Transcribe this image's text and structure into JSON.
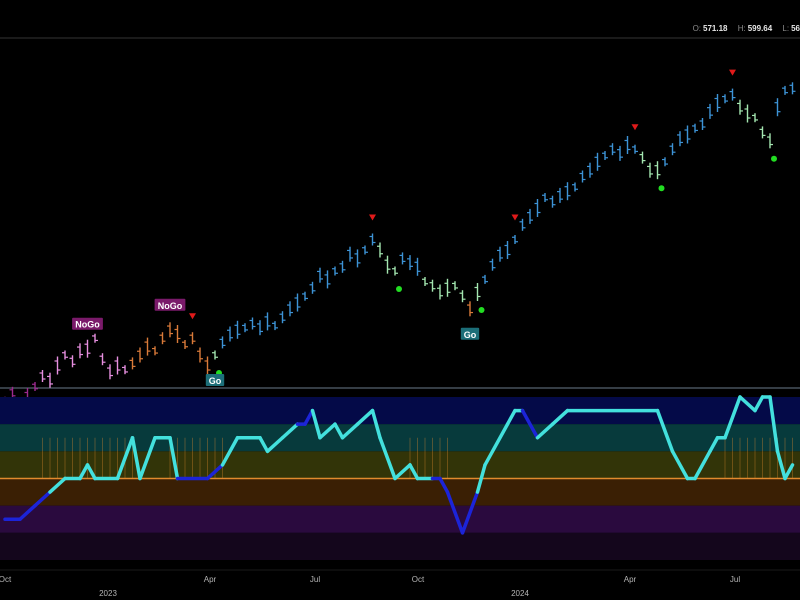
{
  "header": {
    "open_label": "O:",
    "open_value": "571.18",
    "high_label": "H:",
    "high_value": "599.64",
    "low_label": "L:",
    "low_value": "56"
  },
  "colors": {
    "background": "#000000",
    "go_strong": "#3d93d6",
    "go_weak": "#a4e6b0",
    "nogo_strong": "#9c2a8e",
    "nogo_weak": "#e78fe0",
    "neutral": "#d97a39",
    "oscillator_go": "#43e0dd",
    "oscillator_nogo": "#1c24d8",
    "zero_line": "#e08a2e",
    "marker_red": "#e01a1a",
    "marker_green": "#22dd22",
    "go_badge": "#1c6e78",
    "nogo_badge": "#7a1a6a"
  },
  "chart_data": [
    {
      "type": "ohlc",
      "x_axis": {
        "month_ticks": [
          "Oct",
          "Apr",
          "Jul",
          "Oct",
          "Apr",
          "Jul"
        ],
        "year_ticks": [
          "2023",
          "2024"
        ]
      },
      "series": [
        {
          "values": [
            [
              0,
              448,
              "nogo_strong"
            ],
            [
              1,
              452,
              "nogo_strong"
            ],
            [
              2,
              446,
              "nogo_strong"
            ],
            [
              3,
              450,
              "nogo_strong"
            ],
            [
              4,
              455,
              "nogo_strong"
            ],
            [
              5,
              460,
              "nogo_weak"
            ],
            [
              6,
              458,
              "nogo_weak"
            ],
            [
              7,
              465,
              "nogo_weak"
            ],
            [
              8,
              470,
              "nogo_weak"
            ],
            [
              9,
              467,
              "nogo_weak"
            ],
            [
              10,
              472,
              "nogo_weak"
            ],
            [
              11,
              473,
              "nogo_weak"
            ],
            [
              12,
              478,
              "nogo_weak"
            ],
            [
              13,
              468,
              "nogo_weak"
            ],
            [
              14,
              462,
              "nogo_weak"
            ],
            [
              15,
              465,
              "nogo_weak"
            ],
            [
              16,
              463,
              "nogo_weak"
            ],
            [
              17,
              466,
              "neutral"
            ],
            [
              18,
              470,
              "neutral"
            ],
            [
              19,
              474,
              "neutral"
            ],
            [
              20,
              472,
              "neutral"
            ],
            [
              21,
              478,
              "neutral"
            ],
            [
              22,
              482,
              "neutral"
            ],
            [
              23,
              480,
              "neutral"
            ],
            [
              24,
              475,
              "neutral"
            ],
            [
              25,
              478,
              "neutral"
            ],
            [
              26,
              470,
              "neutral"
            ],
            [
              27,
              465,
              "neutral"
            ],
            [
              28,
              470,
              "go_weak"
            ],
            [
              29,
              476,
              "go_strong"
            ],
            [
              30,
              480,
              "go_strong"
            ],
            [
              31,
              482,
              "go_strong"
            ],
            [
              32,
              483,
              "go_strong"
            ],
            [
              33,
              485,
              "go_strong"
            ],
            [
              34,
              483,
              "go_strong"
            ],
            [
              35,
              486,
              "go_strong"
            ],
            [
              36,
              484,
              "go_strong"
            ],
            [
              37,
              488,
              "go_strong"
            ],
            [
              38,
              492,
              "go_strong"
            ],
            [
              39,
              495,
              "go_strong"
            ],
            [
              40,
              498,
              "go_strong"
            ],
            [
              41,
              502,
              "go_strong"
            ],
            [
              42,
              508,
              "go_strong"
            ],
            [
              43,
              506,
              "go_strong"
            ],
            [
              44,
              510,
              "go_strong"
            ],
            [
              45,
              512,
              "go_strong"
            ],
            [
              46,
              518,
              "go_strong"
            ],
            [
              47,
              516,
              "go_strong"
            ],
            [
              48,
              520,
              "go_strong"
            ],
            [
              49,
              525,
              "go_strong"
            ],
            [
              50,
              520,
              "go_weak"
            ],
            [
              51,
              513,
              "go_weak"
            ],
            [
              52,
              510,
              "go_weak"
            ],
            [
              53,
              516,
              "go_strong"
            ],
            [
              54,
              514,
              "go_strong"
            ],
            [
              55,
              512,
              "go_strong"
            ],
            [
              56,
              505,
              "go_weak"
            ],
            [
              57,
              503,
              "go_weak"
            ],
            [
              58,
              500,
              "go_weak"
            ],
            [
              59,
              502,
              "go_weak"
            ],
            [
              60,
              503,
              "go_weak"
            ],
            [
              61,
              498,
              "go_weak"
            ],
            [
              62,
              492,
              "neutral"
            ],
            [
              63,
              500,
              "go_weak"
            ],
            [
              64,
              506,
              "go_strong"
            ],
            [
              65,
              513,
              "go_strong"
            ],
            [
              66,
              518,
              "go_strong"
            ],
            [
              67,
              520,
              "go_strong"
            ],
            [
              68,
              525,
              "go_strong"
            ],
            [
              69,
              532,
              "go_strong"
            ],
            [
              70,
              536,
              "go_strong"
            ],
            [
              71,
              540,
              "go_strong"
            ],
            [
              72,
              545,
              "go_strong"
            ],
            [
              73,
              543,
              "go_strong"
            ],
            [
              74,
              546,
              "go_strong"
            ],
            [
              75,
              548,
              "go_strong"
            ],
            [
              76,
              550,
              "go_strong"
            ],
            [
              77,
              555,
              "go_strong"
            ],
            [
              78,
              558,
              "go_strong"
            ],
            [
              79,
              562,
              "go_strong"
            ],
            [
              80,
              565,
              "go_strong"
            ],
            [
              81,
              568,
              "go_strong"
            ],
            [
              82,
              566,
              "go_strong"
            ],
            [
              83,
              570,
              "go_strong"
            ],
            [
              84,
              568,
              "go_strong"
            ],
            [
              85,
              564,
              "go_weak"
            ],
            [
              86,
              558,
              "go_weak"
            ],
            [
              87,
              558,
              "go_weak"
            ],
            [
              88,
              562,
              "go_strong"
            ],
            [
              89,
              568,
              "go_strong"
            ],
            [
              90,
              573,
              "go_strong"
            ],
            [
              91,
              575,
              "go_strong"
            ],
            [
              92,
              578,
              "go_strong"
            ],
            [
              93,
              580,
              "go_strong"
            ],
            [
              94,
              586,
              "go_strong"
            ],
            [
              95,
              590,
              "go_strong"
            ],
            [
              96,
              592,
              "go_strong"
            ],
            [
              97,
              594,
              "go_strong"
            ],
            [
              98,
              588,
              "go_weak"
            ],
            [
              99,
              585,
              "go_weak"
            ],
            [
              100,
              583,
              "go_weak"
            ],
            [
              101,
              576,
              "go_weak"
            ],
            [
              102,
              572,
              "go_weak"
            ],
            [
              103,
              588,
              "go_strong"
            ],
            [
              104,
              596,
              "go_strong"
            ],
            [
              105,
              597,
              "go_strong"
            ]
          ]
        }
      ],
      "markers": {
        "red_triangles": [
          25,
          49,
          68,
          84,
          97
        ],
        "green_dots": [
          28,
          52,
          63,
          87,
          102
        ],
        "go_badges": [
          {
            "text": "Go",
            "x": 28
          },
          {
            "text": "Go",
            "x": 62
          }
        ],
        "nogo_badges": [
          {
            "text": "NoGo",
            "x": 11
          },
          {
            "text": "NoGo",
            "x": 22
          }
        ]
      }
    },
    {
      "type": "line",
      "ylim": [
        -6,
        6
      ],
      "bands": [
        {
          "from": 6,
          "to": 4,
          "color": "#040a48"
        },
        {
          "from": 4,
          "to": 2,
          "color": "#073a3c"
        },
        {
          "from": 2,
          "to": 0,
          "color": "#323408"
        },
        {
          "from": 0,
          "to": -2,
          "color": "#3a1f04"
        },
        {
          "from": -2,
          "to": -4,
          "color": "#2a0a3e"
        },
        {
          "from": -4,
          "to": -6,
          "color": "#14061c"
        }
      ],
      "zero_line": 0,
      "series": [
        {
          "values": [
            [
              0,
              -3,
              "oscillator_nogo"
            ],
            [
              2,
              -3,
              "oscillator_nogo"
            ],
            [
              4,
              -2,
              "oscillator_nogo"
            ],
            [
              6,
              -1,
              "oscillator_nogo"
            ],
            [
              8,
              0,
              "oscillator_go"
            ],
            [
              10,
              0,
              "oscillator_go"
            ],
            [
              11,
              1,
              "oscillator_go"
            ],
            [
              12,
              0,
              "oscillator_go"
            ],
            [
              15,
              0,
              "oscillator_go"
            ],
            [
              17,
              3,
              "oscillator_go"
            ],
            [
              18,
              0,
              "oscillator_go"
            ],
            [
              20,
              3,
              "oscillator_go"
            ],
            [
              22,
              3,
              "oscillator_go"
            ],
            [
              23,
              0,
              "oscillator_go"
            ],
            [
              27,
              0,
              "oscillator_nogo"
            ],
            [
              29,
              1,
              "oscillator_nogo"
            ],
            [
              31,
              3,
              "oscillator_go"
            ],
            [
              34,
              3,
              "oscillator_go"
            ],
            [
              35,
              2,
              "oscillator_go"
            ],
            [
              37,
              3,
              "oscillator_go"
            ],
            [
              39,
              4,
              "oscillator_go"
            ],
            [
              40,
              4,
              "oscillator_nogo"
            ],
            [
              41,
              5,
              "oscillator_nogo"
            ],
            [
              42,
              3,
              "oscillator_go"
            ],
            [
              44,
              4,
              "oscillator_go"
            ],
            [
              45,
              3,
              "oscillator_go"
            ],
            [
              47,
              4,
              "oscillator_go"
            ],
            [
              49,
              5,
              "oscillator_go"
            ],
            [
              50,
              3,
              "oscillator_go"
            ],
            [
              52,
              0,
              "oscillator_go"
            ],
            [
              54,
              1,
              "oscillator_go"
            ],
            [
              55,
              0,
              "oscillator_go"
            ],
            [
              57,
              0,
              "oscillator_go"
            ],
            [
              58,
              0,
              "oscillator_nogo"
            ],
            [
              59,
              -1,
              "oscillator_nogo"
            ],
            [
              61,
              -4,
              "oscillator_nogo"
            ],
            [
              63,
              -1,
              "oscillator_nogo"
            ],
            [
              64,
              1,
              "oscillator_go"
            ],
            [
              67,
              4,
              "oscillator_go"
            ],
            [
              68,
              5,
              "oscillator_go"
            ],
            [
              69,
              5,
              "oscillator_go"
            ],
            [
              71,
              3,
              "oscillator_nogo"
            ],
            [
              73,
              4,
              "oscillator_go"
            ],
            [
              75,
              5,
              "oscillator_go"
            ],
            [
              87,
              5,
              "oscillator_go"
            ],
            [
              89,
              2,
              "oscillator_go"
            ],
            [
              91,
              0,
              "oscillator_go"
            ],
            [
              92,
              0,
              "oscillator_go"
            ],
            [
              94,
              2,
              "oscillator_go"
            ],
            [
              95,
              3,
              "oscillator_go"
            ],
            [
              96,
              3,
              "oscillator_go"
            ],
            [
              98,
              6,
              "oscillator_go"
            ],
            [
              100,
              5,
              "oscillator_go"
            ],
            [
              101,
              6,
              "oscillator_go"
            ],
            [
              102,
              6,
              "oscillator_go"
            ],
            [
              103,
              2,
              "oscillator_go"
            ],
            [
              104,
              0,
              "oscillator_go"
            ],
            [
              105,
              1,
              "oscillator_go"
            ]
          ]
        }
      ],
      "highlights": [
        {
          "from": 5,
          "to": 11
        },
        {
          "from": 12,
          "to": 17
        },
        {
          "from": 22,
          "to": 29
        },
        {
          "from": 54,
          "to": 59
        },
        {
          "from": 96,
          "to": 105
        }
      ]
    }
  ]
}
